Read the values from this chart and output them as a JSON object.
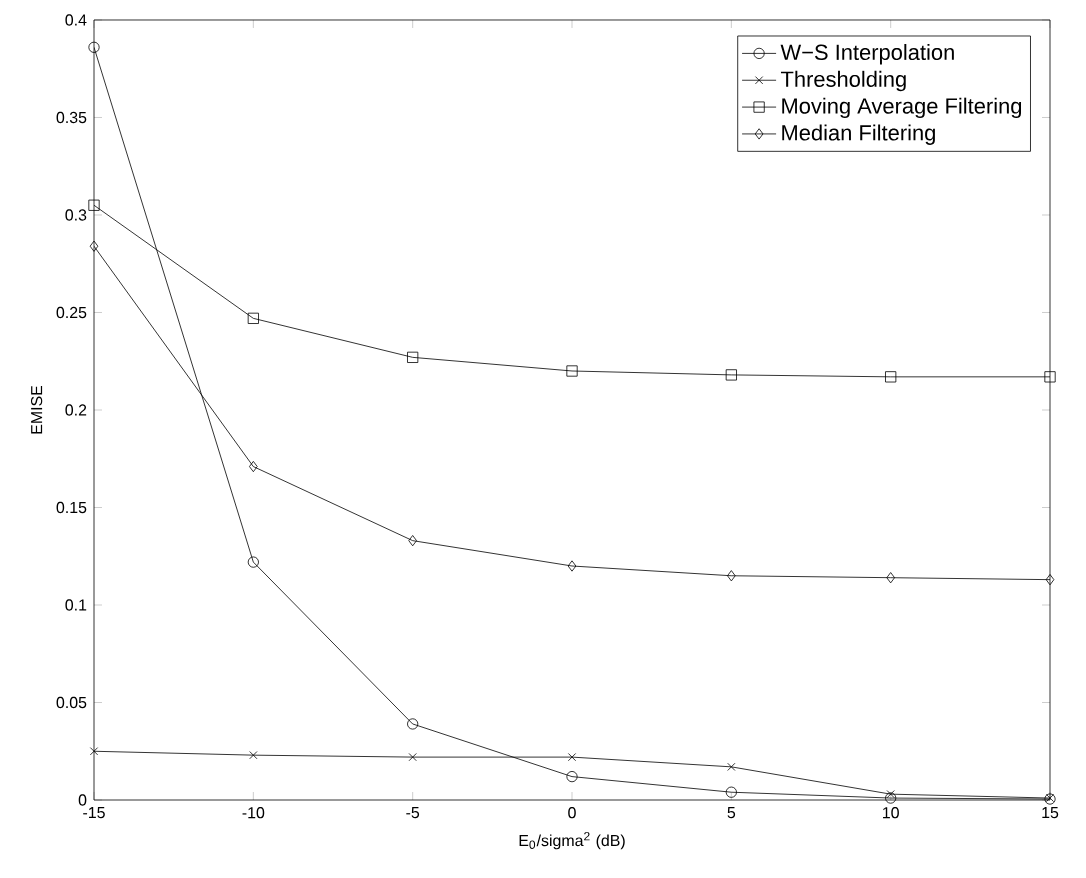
{
  "chart_data": {
    "type": "line",
    "xlabel": "E$_{0}$/sigma$^{2}$ (dB)",
    "ylabel": "EMISE",
    "x": [
      -15,
      -10,
      -5,
      0,
      5,
      10,
      15
    ],
    "xlim": [
      -15,
      15
    ],
    "xticks": [
      -15,
      -10,
      -5,
      0,
      5,
      10,
      15
    ],
    "ylim": [
      0,
      0.4
    ],
    "yticks": [
      0,
      0.05,
      0.1,
      0.15,
      0.2,
      0.25,
      0.3,
      0.35,
      0.4
    ],
    "legend": "top right",
    "grid": false,
    "line_style": "solid",
    "series": [
      {
        "name": "W−S Interpolation",
        "color": "#000000",
        "marker": "circle",
        "values": [
          0.386,
          0.122,
          0.039,
          0.012,
          0.004,
          0.001,
          0.0005
        ]
      },
      {
        "name": "Thresholding",
        "color": "#000000",
        "marker": "cross",
        "values": [
          0.025,
          0.023,
          0.022,
          0.022,
          0.017,
          0.003,
          0.001
        ]
      },
      {
        "name": "Moving Average Filtering",
        "color": "#000000",
        "marker": "square",
        "values": [
          0.305,
          0.247,
          0.227,
          0.22,
          0.218,
          0.217,
          0.217
        ]
      },
      {
        "name": "Median Filtering",
        "color": "#000000",
        "marker": "diamond",
        "values": [
          0.284,
          0.171,
          0.133,
          0.12,
          0.115,
          0.114,
          0.113
        ]
      }
    ]
  }
}
